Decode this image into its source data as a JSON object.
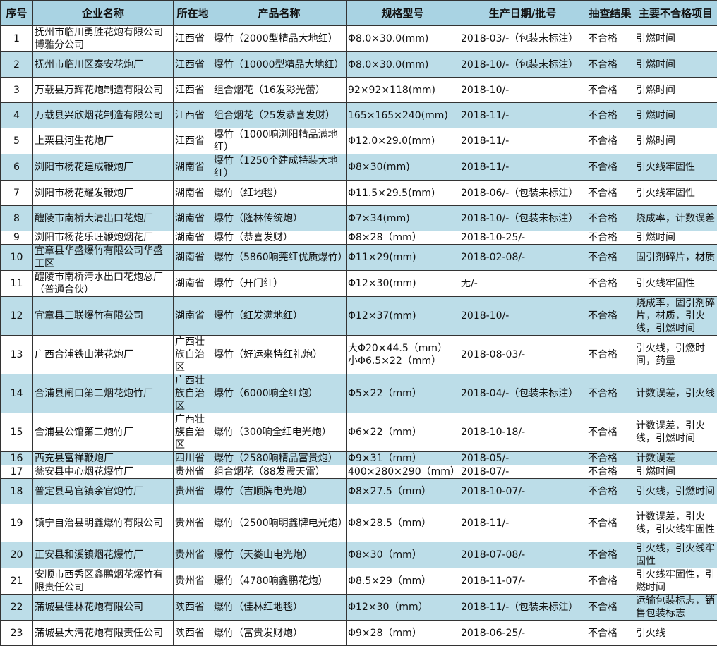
{
  "colors": {
    "header_bg": "#a9d3e3",
    "alt_row_bg": "#bcdde8",
    "border": "#333333"
  },
  "headers": [
    "序号",
    "企业名称",
    "所在地",
    "产品名称",
    "规格型号",
    "生产日期/批号",
    "抽查结果",
    "主要不合格项目"
  ],
  "rows": [
    [
      "1",
      "抚州市临川勇胜花炮有限公司博雅分公司",
      "江西省",
      "爆竹（2000型精品大地红）",
      "Φ8.0×30.0(mm)",
      "2018-03/-（包装未标注）",
      "不合格",
      "引燃时间"
    ],
    [
      "2",
      "抚州市临川区泰安花炮厂",
      "江西省",
      "爆竹（10000型精品大地红）",
      "Φ8.0×30.0(mm)",
      "2018-10/-（包装未标注）",
      "不合格",
      "引燃时间"
    ],
    [
      "3",
      "万载县万辉花炮制造有限公司",
      "江西省",
      "组合烟花（16发彩光蕾）",
      "92×92×118(mm)",
      "2018-10/-",
      "不合格",
      "引燃时间"
    ],
    [
      "4",
      "万载县兴欣烟花制造有限公司",
      "江西省",
      "组合烟花（25发恭喜发财）",
      "165×165×240(mm)",
      "2018-11/-",
      "不合格",
      "引燃时间"
    ],
    [
      "5",
      "上栗县河生花炮厂",
      "江西省",
      "爆竹（1000响浏阳精品满地红）",
      "Φ12.0×29.0(mm)",
      "2018-11/-",
      "不合格",
      "引燃时间"
    ],
    [
      "6",
      "浏阳市杨花建成鞭炮厂",
      "湖南省",
      "爆竹（1250个建成特装大地红）",
      "Φ8×30(mm)",
      "2018-11/-",
      "不合格",
      "引火线牢固性"
    ],
    [
      "7",
      "浏阳市杨花耀发鞭炮厂",
      "湖南省",
      "爆竹（红地毯）",
      "Φ11.5×29.5(mm)",
      "2018-06/-（包装未标注）",
      "不合格",
      "引火线牢固性"
    ],
    [
      "8",
      "醴陵市南桥大清出口花炮厂",
      "湖南省",
      "爆竹（隆林传统炮）",
      "Φ7×34(mm)",
      "2018-10/-（包装未标注）",
      "不合格",
      "烧成率，计数误差"
    ],
    [
      "9",
      "浏阳市杨花乐旺鞭炮烟花厂",
      "湖南省",
      "爆竹（恭喜发财）",
      "Φ8×28（mm）",
      "2018-10-25/-",
      "不合格",
      "引燃时间"
    ],
    [
      "10",
      "宜章县华盛爆竹有限公司华盛工区",
      "湖南省",
      "爆竹（5860响莞红优质爆竹）",
      "Φ11×29(mm)",
      "2018-02-08/-",
      "不合格",
      "固引剂碎片，材质"
    ],
    [
      "11",
      "醴陵市南桥清水出口花炮总厂（普通合伙）",
      "湖南省",
      "爆竹（开门红）",
      "Φ12×30(mm)",
      "无/-",
      "不合格",
      "引火线牢固性"
    ],
    [
      "12",
      "宜章县三联爆竹有限公司",
      "湖南省",
      "爆竹（红发满地红）",
      "Φ12×37(mm)",
      "2018-10/-",
      "不合格",
      "烧成率，固引剂碎片，材质，引火线，引燃时间"
    ],
    [
      "13",
      "广西合浦铁山港花炮厂",
      "广西壮族自治区",
      "爆竹（好运来特红礼炮）",
      "大Φ20×44.5（mm）\n小Φ6.5×22（mm）",
      "2018-08-03/-",
      "不合格",
      "引火线，引燃时间，药量"
    ],
    [
      "14",
      "合浦县闸口第二烟花炮竹厂",
      "广西壮族自治区",
      "爆竹（6000响全红炮）",
      "Φ5×22（mm）",
      "2018-04/-（包装未标注）",
      "不合格",
      "计数误差，引火线"
    ],
    [
      "15",
      "合浦县公馆第二炮竹厂",
      "广西壮族自治区",
      "爆竹（300响全红电光炮）",
      "Φ6×22（mm）",
      "2018-10-18/-",
      "不合格",
      "计数误差，引火线，引燃时间"
    ],
    [
      "16",
      "西充县富祥鞭炮厂",
      "四川省",
      "爆竹（2580响精品富贵炮）",
      "Φ9×31（mm）",
      "2018-05/-",
      "不合格",
      "计数误差"
    ],
    [
      "17",
      "瓮安县中心烟花爆竹厂",
      "贵州省",
      "组合烟花（88发震天雷）",
      "400×280×290（mm）",
      "2018-07/-",
      "不合格",
      "引燃时间"
    ],
    [
      "18",
      "普定县马官镇余官炮竹厂",
      "贵州省",
      "爆竹（吉顺牌电光炮）",
      "Φ8×27.5（mm）",
      "2018-10-07/-",
      "不合格",
      "引火线，引燃时间"
    ],
    [
      "19",
      "镇宁自治县明鑫爆竹有限公司",
      "贵州省",
      "爆竹（2500响明鑫牌电光炮）",
      "Φ8×28.5（mm）",
      "2018-11/-",
      "不合格",
      "计数误差，引火线，引火线牢固性"
    ],
    [
      "20",
      "正安县和溪镇烟花爆竹厂",
      "贵州省",
      "爆竹（天娄山电光炮）",
      "Φ8×30（mm）",
      "2018-07-08/-",
      "不合格",
      "引火线，引火线牢固性"
    ],
    [
      "21",
      "安顺市西秀区鑫鹏烟花爆竹有限责任公司",
      "贵州省",
      "爆竹（4780响鑫鹏花炮）",
      "Φ8.5×29（mm）",
      "2018-11-07/-",
      "不合格",
      "引火线牢固性，引燃时间"
    ],
    [
      "22",
      "蒲城县佳林花炮有限公司",
      "陕西省",
      "爆竹（佳林红地毯）",
      "Φ12×30（mm）",
      "2018-11/-（包装未标注）",
      "不合格",
      "运输包装标志，销售包装标志"
    ],
    [
      "23",
      "蒲城县大清花炮有限责任公司",
      "陕西省",
      "爆竹（富贵发财炮）",
      "Φ9×28（mm）",
      "2018-06-25/-",
      "不合格",
      "引火线"
    ]
  ]
}
